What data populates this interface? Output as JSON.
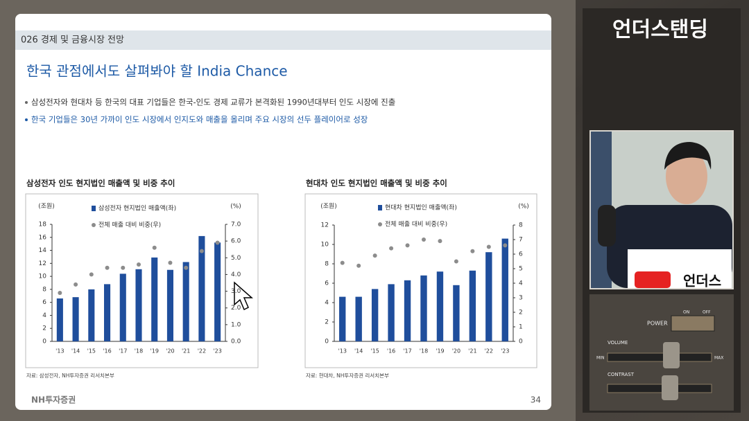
{
  "slide": {
    "header": "026 경제 및 금융시장 전망",
    "title": "한국 관점에서도 살펴봐야 할 India Chance",
    "bullets": [
      "삼성전자와 현대차 등 한국의 대표 기업들은 한국-인도 경제 교류가 본격화된 1990년대부터 인도 시장에 진출",
      "한국 기업들은 30년 가까이 인도 시장에서 인지도와 매출을 올리며 주요 시장의 선두 플레이어로 성장"
    ],
    "logo": "NH투자증권",
    "page": "34"
  },
  "overlay": {
    "channel": "언더스탠딩",
    "sign": "언더스",
    "controls": {
      "power": "POWER",
      "on": "ON",
      "off": "OFF",
      "volume": "VOLUME",
      "contrast": "CONTRAST",
      "min": "MIN",
      "max": "MAX"
    }
  },
  "chart_data": [
    {
      "type": "bar",
      "title": "삼성전자 인도 현지법인 매출액 및 비중 추이",
      "y_unit": "(조원)",
      "y2_unit": "(%)",
      "source": "자료: 삼성전자, NH투자증권 리서치본부",
      "categories": [
        "'13",
        "'14",
        "'15",
        "'16",
        "'17",
        "'18",
        "'19",
        "'20",
        "'21",
        "'22",
        "'23"
      ],
      "series": [
        {
          "name": "삼성전자 현지법인 매출액(좌)",
          "color": "#1f4e9c",
          "values": [
            6.6,
            6.8,
            8.0,
            8.8,
            10.4,
            11.1,
            12.9,
            11.0,
            12.2,
            16.2,
            15.2
          ]
        },
        {
          "name": "전체 매출 대비 비중(우)",
          "color": "#8c8c8c",
          "type": "scatter",
          "axis": "y2",
          "values": [
            2.9,
            3.4,
            4.0,
            4.4,
            4.4,
            4.6,
            5.6,
            4.7,
            4.4,
            5.4,
            5.9
          ]
        }
      ],
      "ylim": [
        0,
        18
      ],
      "yticks": [
        0,
        2,
        4,
        6,
        8,
        10,
        12,
        14,
        16,
        18
      ],
      "y2lim": [
        0,
        7
      ],
      "y2ticks": [
        {
          "value": 0,
          "label": "0.0"
        },
        {
          "value": 1,
          "label": "1.0"
        },
        {
          "value": 2,
          "label": "2.0"
        },
        {
          "value": 3,
          "label": "3.0"
        },
        {
          "value": 4,
          "label": "4.0"
        },
        {
          "value": 5,
          "label": "5.0"
        },
        {
          "value": 6,
          "label": "6.0"
        },
        {
          "value": 7,
          "label": "7.0"
        }
      ]
    },
    {
      "type": "bar",
      "title": "현대차 인도 현지법인 매출액 및 비중 추이",
      "y_unit": "(조원)",
      "y2_unit": "(%)",
      "source": "자료: 현대차, NH투자증권 리서치본부",
      "categories": [
        "'13",
        "'14",
        "'15",
        "'16",
        "'17",
        "'18",
        "'19",
        "'20",
        "'21",
        "'22",
        "'23"
      ],
      "series": [
        {
          "name": "현대차 현지법인 매출액(좌)",
          "color": "#1f4e9c",
          "values": [
            4.6,
            4.6,
            5.4,
            5.9,
            6.3,
            6.8,
            7.2,
            5.8,
            7.3,
            9.2,
            10.6
          ]
        },
        {
          "name": "전체 매출 대비 비중(우)",
          "color": "#8c8c8c",
          "type": "scatter",
          "axis": "y2",
          "values": [
            5.4,
            5.2,
            5.9,
            6.4,
            6.6,
            7.0,
            6.9,
            5.5,
            6.2,
            6.5,
            6.6
          ]
        }
      ],
      "ylim": [
        0,
        12
      ],
      "yticks": [
        0,
        2,
        4,
        6,
        8,
        10,
        12
      ],
      "y2lim": [
        0,
        8
      ],
      "y2ticks": [
        0,
        1,
        2,
        3,
        4,
        5,
        6,
        7,
        8
      ]
    }
  ]
}
